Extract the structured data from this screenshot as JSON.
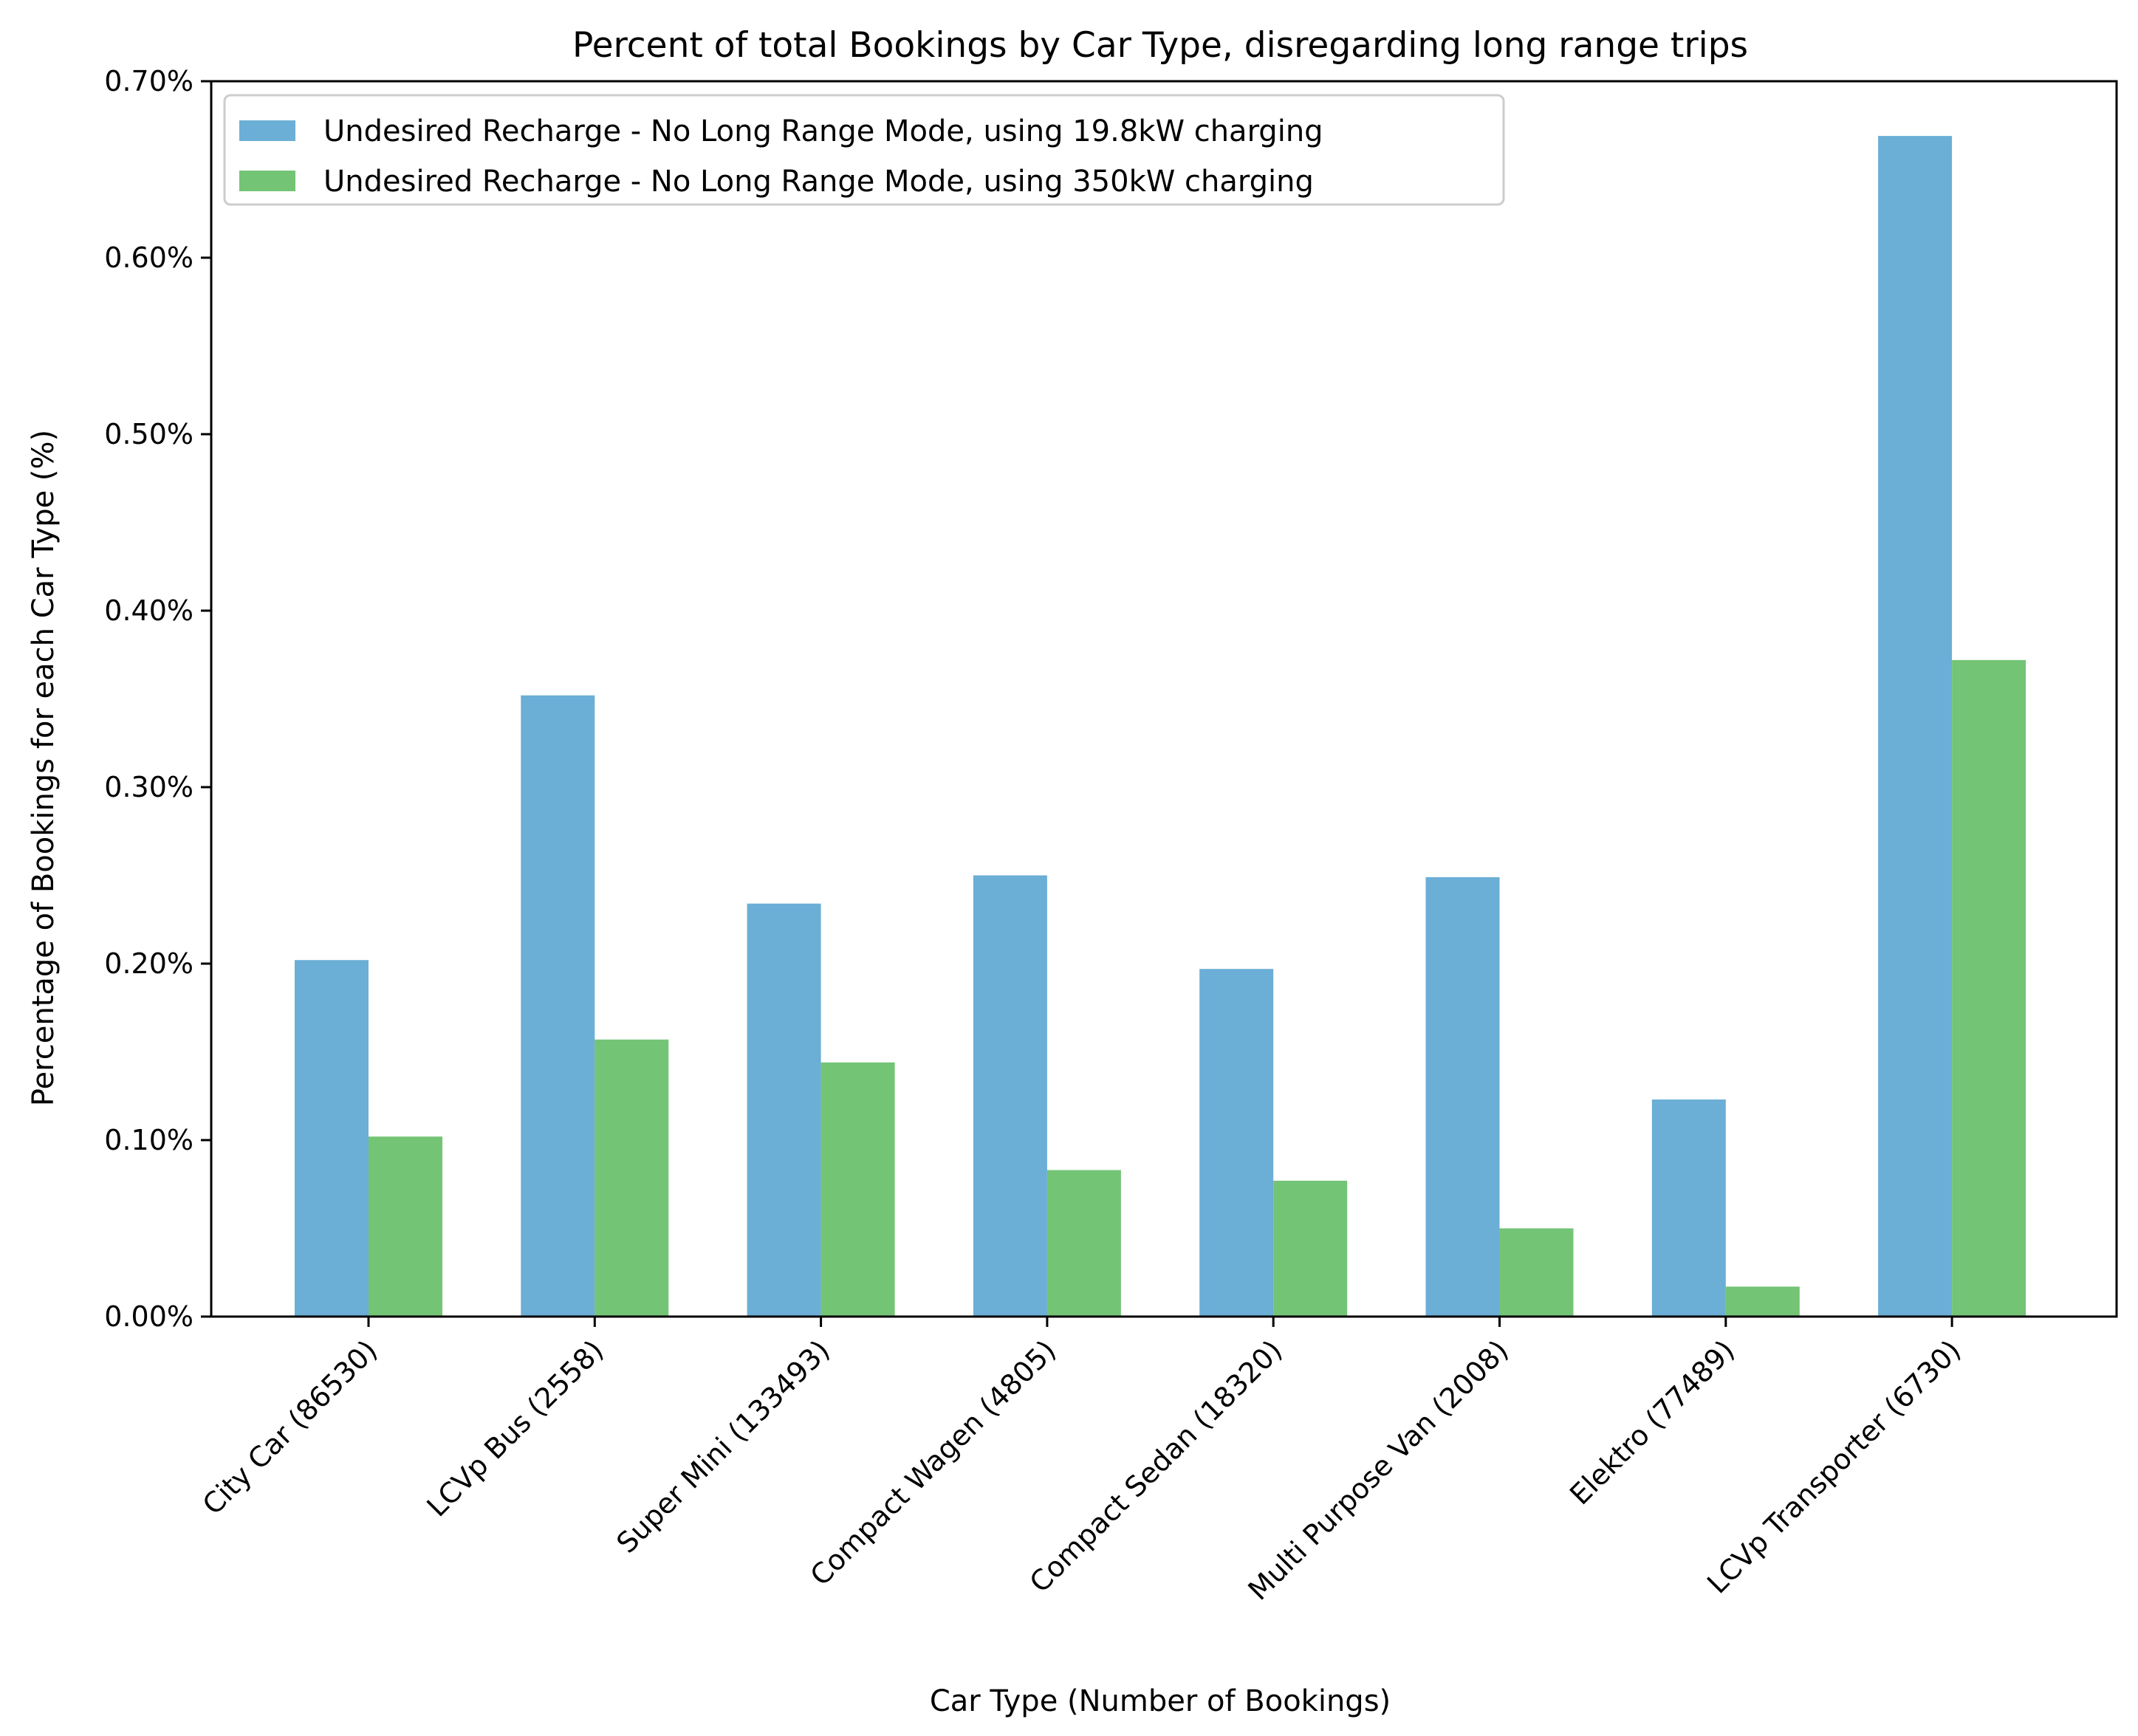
{
  "chart_data": {
    "type": "bar",
    "title": "Percent of total Bookings by Car Type, disregarding long range trips",
    "xlabel": "Car Type (Number of Bookings)",
    "ylabel": "Percentage of Bookings for each Car Type (%)",
    "ylim": [
      0,
      0.7
    ],
    "yticks": [
      0,
      0.1,
      0.2,
      0.3,
      0.4,
      0.5,
      0.6,
      0.7
    ],
    "ytick_labels": [
      "0.00%",
      "0.10%",
      "0.20%",
      "0.30%",
      "0.40%",
      "0.50%",
      "0.60%",
      "0.70%"
    ],
    "categories": [
      "City Car (86530)",
      "LCVp Bus (2558)",
      "Super Mini (133493)",
      "Compact Wagen (4805)",
      "Compact Sedan (18320)",
      "Multi Purpose Van (2008)",
      "Elektro (77489)",
      "LCVp Transporter (6730)"
    ],
    "series": [
      {
        "name": "Undesired Recharge - No Long Range Mode, using 19.8kW charging",
        "color": "#6baed6",
        "values": [
          0.202,
          0.352,
          0.234,
          0.25,
          0.197,
          0.249,
          0.123,
          0.669
        ]
      },
      {
        "name": "Undesired Recharge - No Long Range Mode, using 350kW charging",
        "color": "#74c476",
        "values": [
          0.102,
          0.157,
          0.144,
          0.083,
          0.077,
          0.05,
          0.017,
          0.372
        ]
      }
    ],
    "grid": false,
    "legend_position": "top-left"
  }
}
